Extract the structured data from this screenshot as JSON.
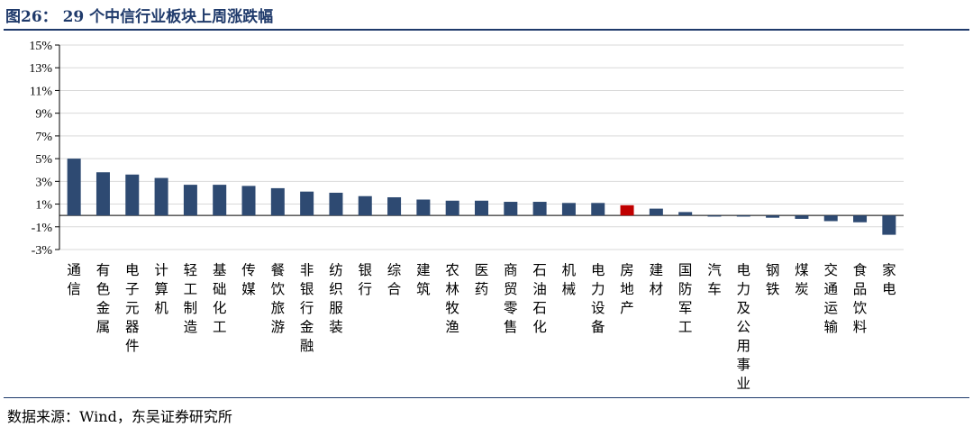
{
  "title": "图26： 29 个中信行业板块上周涨跌幅",
  "source": "数据来源：Wind，东吴证券研究所",
  "colors": {
    "bar": "#2e4a72",
    "highlight": "#c00000",
    "grid": "#d9d9d9",
    "rule": "#1f3a6b"
  },
  "chart_data": {
    "type": "bar",
    "title": "",
    "xlabel": "",
    "ylabel": "",
    "ylim": [
      -3,
      15
    ],
    "yticks": [
      15,
      13,
      11,
      9,
      7,
      5,
      3,
      1,
      -1,
      -3
    ],
    "ytick_labels": [
      "15%",
      "13%",
      "11%",
      "9%",
      "7%",
      "5%",
      "3%",
      "1%",
      "-1%",
      "-3%"
    ],
    "grid": true,
    "categories": [
      "通信",
      "有色金属",
      "电子元器件",
      "计算机",
      "轻工制造",
      "基础化工",
      "传媒",
      "餐饮旅游",
      "非银行金融",
      "纺织服装",
      "银行",
      "综合",
      "建筑",
      "农林牧渔",
      "医药",
      "商贸零售",
      "石油石化",
      "机械",
      "电力设备",
      "房地产",
      "建材",
      "国防军工",
      "汽车",
      "电力及公用事业",
      "钢铁",
      "煤炭",
      "交通运输",
      "食品饮料",
      "家电"
    ],
    "values": [
      5.0,
      3.8,
      3.6,
      3.3,
      2.7,
      2.7,
      2.6,
      2.4,
      2.1,
      2.0,
      1.7,
      1.6,
      1.4,
      1.3,
      1.3,
      1.2,
      1.2,
      1.1,
      1.1,
      0.9,
      0.6,
      0.3,
      -0.1,
      -0.1,
      -0.2,
      -0.3,
      -0.5,
      -0.6,
      -1.7
    ],
    "highlight_category": "房地产"
  }
}
